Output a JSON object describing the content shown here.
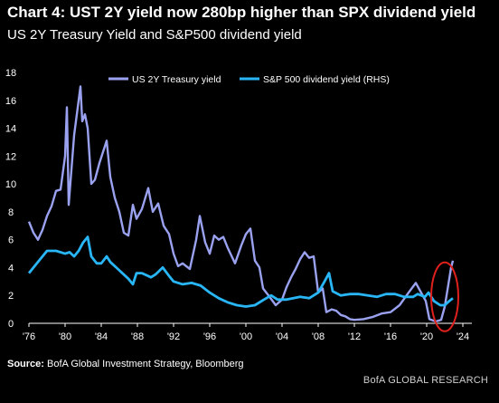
{
  "title": "Chart 4: UST 2Y yield now 280bp higher than SPX dividend yield",
  "subtitle": "US 2Y Treasury Yield and S&P500 dividend yield",
  "source_label": "Source:",
  "source_text": "BofA Global Investment Strategy, Bloomberg",
  "brand": "BofA GLOBAL RESEARCH",
  "chart_data": {
    "type": "line",
    "title": "",
    "xlabel": "",
    "ylabel": "",
    "x_tick_labels": [
      "'76",
      "'80",
      "'84",
      "'88",
      "'92",
      "'96",
      "'00",
      "'04",
      "'08",
      "'12",
      "'16",
      "'20",
      "'24"
    ],
    "x_tick_years": [
      1976,
      1980,
      1984,
      1988,
      1992,
      1996,
      2000,
      2004,
      2008,
      2012,
      2016,
      2020,
      2024
    ],
    "xlim": [
      1976,
      2025
    ],
    "y_tick_labels": [
      "0",
      "2",
      "4",
      "6",
      "8",
      "10",
      "12",
      "14",
      "16",
      "18"
    ],
    "ylim": [
      0,
      18
    ],
    "legend_position": "top",
    "annotation": "red circle highlighting 2022 yields",
    "series": [
      {
        "name": "US 2Y Treasury yield",
        "color": "#9aa2f0",
        "axis": "left",
        "points": [
          [
            1976.0,
            7.3
          ],
          [
            1976.5,
            6.5
          ],
          [
            1977.0,
            6.0
          ],
          [
            1977.5,
            6.7
          ],
          [
            1978.0,
            7.7
          ],
          [
            1978.5,
            8.4
          ],
          [
            1979.0,
            9.5
          ],
          [
            1979.5,
            9.6
          ],
          [
            1980.0,
            12.0
          ],
          [
            1980.2,
            15.5
          ],
          [
            1980.4,
            8.5
          ],
          [
            1980.7,
            11.0
          ],
          [
            1981.0,
            13.5
          ],
          [
            1981.3,
            15.0
          ],
          [
            1981.7,
            17.0
          ],
          [
            1981.9,
            14.5
          ],
          [
            1982.2,
            15.0
          ],
          [
            1982.5,
            14.0
          ],
          [
            1982.9,
            10.0
          ],
          [
            1983.3,
            10.3
          ],
          [
            1983.8,
            11.5
          ],
          [
            1984.3,
            12.5
          ],
          [
            1984.6,
            13.1
          ],
          [
            1985.0,
            10.5
          ],
          [
            1985.5,
            9.0
          ],
          [
            1986.0,
            8.0
          ],
          [
            1986.5,
            6.5
          ],
          [
            1987.0,
            6.3
          ],
          [
            1987.5,
            8.5
          ],
          [
            1987.9,
            7.5
          ],
          [
            1988.5,
            8.2
          ],
          [
            1989.2,
            9.7
          ],
          [
            1989.7,
            8.0
          ],
          [
            1990.3,
            8.6
          ],
          [
            1990.9,
            7.0
          ],
          [
            1991.5,
            6.4
          ],
          [
            1992.0,
            5.0
          ],
          [
            1992.5,
            4.1
          ],
          [
            1993.0,
            4.3
          ],
          [
            1993.8,
            3.9
          ],
          [
            1994.5,
            6.0
          ],
          [
            1994.9,
            7.7
          ],
          [
            1995.5,
            5.8
          ],
          [
            1996.0,
            5.0
          ],
          [
            1996.5,
            6.3
          ],
          [
            1997.0,
            6.0
          ],
          [
            1997.5,
            6.2
          ],
          [
            1998.0,
            5.4
          ],
          [
            1998.8,
            4.3
          ],
          [
            1999.5,
            5.6
          ],
          [
            2000.0,
            6.4
          ],
          [
            2000.5,
            6.8
          ],
          [
            2001.0,
            4.5
          ],
          [
            2001.5,
            4.0
          ],
          [
            2001.9,
            2.5
          ],
          [
            2002.5,
            2.0
          ],
          [
            2003.3,
            1.3
          ],
          [
            2004.0,
            1.7
          ],
          [
            2004.5,
            2.6
          ],
          [
            2005.0,
            3.3
          ],
          [
            2005.5,
            3.9
          ],
          [
            2006.0,
            4.6
          ],
          [
            2006.5,
            5.1
          ],
          [
            2007.0,
            4.7
          ],
          [
            2007.5,
            4.8
          ],
          [
            2008.0,
            2.2
          ],
          [
            2008.5,
            2.5
          ],
          [
            2008.9,
            0.8
          ],
          [
            2009.5,
            1.0
          ],
          [
            2010.0,
            0.9
          ],
          [
            2010.5,
            0.6
          ],
          [
            2011.0,
            0.5
          ],
          [
            2011.5,
            0.3
          ],
          [
            2012.0,
            0.25
          ],
          [
            2013.0,
            0.3
          ],
          [
            2014.0,
            0.45
          ],
          [
            2015.0,
            0.7
          ],
          [
            2016.0,
            0.8
          ],
          [
            2017.0,
            1.3
          ],
          [
            2018.0,
            2.2
          ],
          [
            2018.8,
            2.9
          ],
          [
            2019.3,
            2.3
          ],
          [
            2019.9,
            1.6
          ],
          [
            2020.3,
            0.3
          ],
          [
            2021.0,
            0.13
          ],
          [
            2021.6,
            0.25
          ],
          [
            2022.0,
            1.2
          ],
          [
            2022.4,
            2.8
          ],
          [
            2022.7,
            4.0
          ],
          [
            2022.9,
            4.5
          ]
        ]
      },
      {
        "name": "S&P 500 dividend yield (RHS)",
        "color": "#29b6f6",
        "axis": "right",
        "points": [
          [
            1976.0,
            3.6
          ],
          [
            1977.0,
            4.4
          ],
          [
            1978.0,
            5.2
          ],
          [
            1979.0,
            5.2
          ],
          [
            1980.0,
            5.0
          ],
          [
            1980.5,
            5.1
          ],
          [
            1981.0,
            4.8
          ],
          [
            1981.5,
            5.2
          ],
          [
            1982.0,
            5.8
          ],
          [
            1982.5,
            6.2
          ],
          [
            1982.9,
            4.8
          ],
          [
            1983.5,
            4.3
          ],
          [
            1984.0,
            4.3
          ],
          [
            1984.6,
            4.8
          ],
          [
            1985.0,
            4.4
          ],
          [
            1986.0,
            3.8
          ],
          [
            1987.0,
            3.2
          ],
          [
            1987.5,
            2.8
          ],
          [
            1987.9,
            3.6
          ],
          [
            1988.5,
            3.6
          ],
          [
            1989.5,
            3.3
          ],
          [
            1990.0,
            3.5
          ],
          [
            1990.8,
            4.0
          ],
          [
            1991.5,
            3.4
          ],
          [
            1992.0,
            3.0
          ],
          [
            1993.0,
            2.8
          ],
          [
            1994.0,
            2.9
          ],
          [
            1995.0,
            2.7
          ],
          [
            1996.0,
            2.2
          ],
          [
            1997.0,
            1.8
          ],
          [
            1998.0,
            1.5
          ],
          [
            1999.0,
            1.3
          ],
          [
            2000.0,
            1.2
          ],
          [
            2001.0,
            1.3
          ],
          [
            2002.0,
            1.7
          ],
          [
            2002.8,
            2.0
          ],
          [
            2003.5,
            1.7
          ],
          [
            2004.5,
            1.7
          ],
          [
            2006.0,
            1.9
          ],
          [
            2007.0,
            1.8
          ],
          [
            2008.0,
            2.2
          ],
          [
            2008.7,
            3.0
          ],
          [
            2009.2,
            3.6
          ],
          [
            2009.6,
            2.3
          ],
          [
            2010.5,
            2.0
          ],
          [
            2011.5,
            2.1
          ],
          [
            2012.5,
            2.1
          ],
          [
            2013.5,
            2.0
          ],
          [
            2014.5,
            1.9
          ],
          [
            2015.5,
            2.1
          ],
          [
            2016.5,
            2.1
          ],
          [
            2017.5,
            1.9
          ],
          [
            2018.5,
            1.9
          ],
          [
            2019.0,
            2.1
          ],
          [
            2019.8,
            1.9
          ],
          [
            2020.2,
            2.2
          ],
          [
            2020.8,
            1.6
          ],
          [
            2021.5,
            1.3
          ],
          [
            2022.0,
            1.3
          ],
          [
            2022.5,
            1.6
          ],
          [
            2022.9,
            1.8
          ]
        ]
      }
    ]
  }
}
